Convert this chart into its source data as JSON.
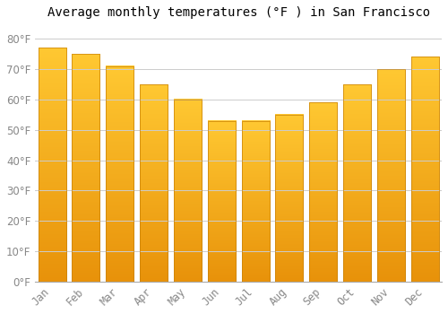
{
  "title": "Average monthly temperatures (°F ) in San Francisco",
  "months": [
    "Jan",
    "Feb",
    "Mar",
    "Apr",
    "May",
    "Jun",
    "Jul",
    "Aug",
    "Sep",
    "Oct",
    "Nov",
    "Dec"
  ],
  "values": [
    77,
    75,
    71,
    65,
    60,
    53,
    53,
    55,
    59,
    65,
    70,
    74
  ],
  "bar_color_top": "#FFD966",
  "bar_color_bottom": "#E8920A",
  "bar_edge_color": "#C8820A",
  "background_color": "#FFFFFF",
  "grid_color": "#CCCCCC",
  "ylim": [
    0,
    85
  ],
  "yticks": [
    0,
    10,
    20,
    30,
    40,
    50,
    60,
    70,
    80
  ],
  "tick_label_color": "#888888",
  "title_fontsize": 10,
  "tick_fontsize": 8.5
}
